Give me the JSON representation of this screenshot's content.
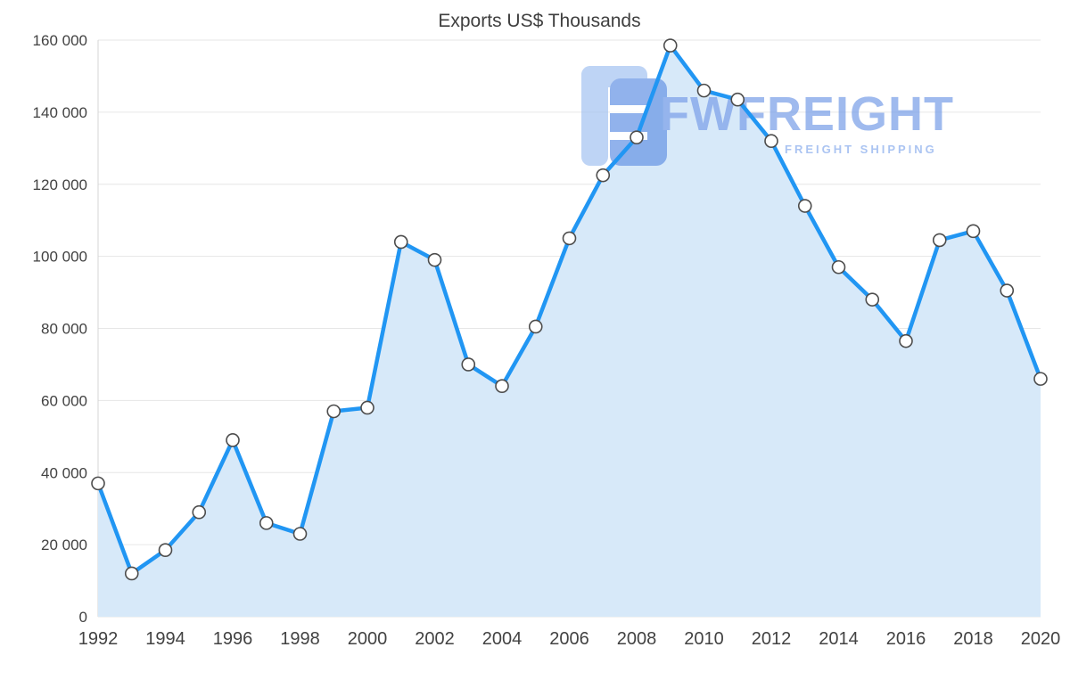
{
  "chart_data": {
    "type": "area",
    "title": "Exports US$ Thousands",
    "x": [
      1992,
      1993,
      1994,
      1995,
      1996,
      1997,
      1998,
      1999,
      2000,
      2001,
      2002,
      2003,
      2004,
      2005,
      2006,
      2007,
      2008,
      2009,
      2010,
      2011,
      2012,
      2013,
      2014,
      2015,
      2016,
      2017,
      2018,
      2019,
      2020
    ],
    "values": [
      37000,
      12000,
      18500,
      29000,
      49000,
      26000,
      23000,
      57000,
      58000,
      104000,
      99000,
      70000,
      64000,
      80500,
      105000,
      122500,
      133000,
      158500,
      146000,
      143500,
      132000,
      114000,
      97000,
      88000,
      76500,
      104500,
      107000,
      90500,
      66000
    ],
    "series_name": "Exports US$ Thousands",
    "xlabel": "",
    "ylabel": "",
    "ylim": [
      0,
      160000
    ],
    "yticks": [
      0,
      20000,
      40000,
      60000,
      80000,
      100000,
      120000,
      140000,
      160000
    ],
    "ytick_labels": [
      "0",
      "20 000",
      "40 000",
      "60 000",
      "80 000",
      "100 000",
      "120 000",
      "140 000",
      "160 000"
    ],
    "xticks": [
      1992,
      1994,
      1996,
      1998,
      2000,
      2002,
      2004,
      2006,
      2008,
      2010,
      2012,
      2014,
      2016,
      2018,
      2020
    ],
    "grid": true,
    "legend": "none",
    "line_color": "#2196f3",
    "fill_color": "#d7e9f9",
    "marker_style": "white circle with dark gray outline"
  },
  "watermark": {
    "brand": "FWFREIGHT",
    "tagline": "FREIGHT SHIPPING",
    "brand_color": "#7fa3e9"
  }
}
